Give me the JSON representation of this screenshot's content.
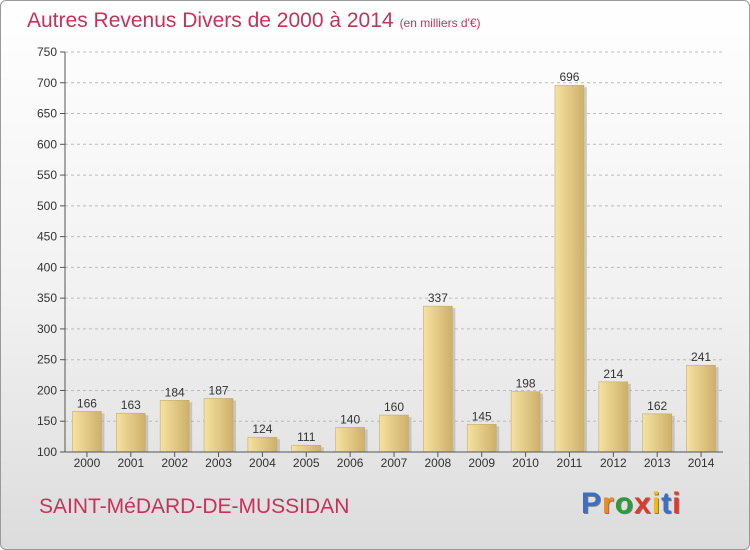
{
  "header": {
    "title": "Autres Revenus Divers de 2000 à 2014",
    "subtitle": "(en milliers d'€)"
  },
  "footer": {
    "commune": "SAINT-MéDARD-DE-MUSSIDAN",
    "brand": "Proxiti"
  },
  "colors": {
    "title": "#c8325a",
    "bar_light": "#f6e2a0",
    "bar_dark": "#cdb06a",
    "axis": "#555555",
    "grid": "#bbbbbb"
  },
  "brand_letter_colors": [
    "#3a6fc4",
    "#f08a1c",
    "#2f9a3a",
    "#e03a2a",
    "#f2b90f",
    "#3a6fc4",
    "#e03a2a"
  ],
  "chart_data": {
    "type": "bar",
    "title": "Autres Revenus Divers de 2000 à 2014",
    "subtitle": "(en milliers d'€)",
    "categories": [
      "2000",
      "2001",
      "2002",
      "2003",
      "2004",
      "2005",
      "2006",
      "2007",
      "2008",
      "2009",
      "2010",
      "2011",
      "2012",
      "2013",
      "2014"
    ],
    "values": [
      166,
      163,
      184,
      187,
      124,
      111,
      140,
      160,
      337,
      145,
      198,
      696,
      214,
      162,
      241
    ],
    "ylim": [
      100,
      750
    ],
    "yticks": [
      100,
      150,
      200,
      250,
      300,
      350,
      400,
      450,
      500,
      550,
      600,
      650,
      700,
      750
    ],
    "grid": true,
    "data_labels": true,
    "legend": "none"
  }
}
